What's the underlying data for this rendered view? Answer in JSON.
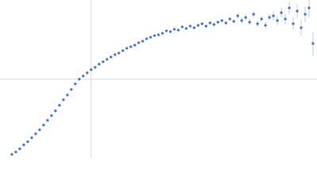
{
  "chart_data": {
    "type": "scatter",
    "xlim": [
      0,
      400
    ],
    "ylim": [
      0,
      200
    ],
    "reference_lines": {
      "x": 115,
      "y": 100,
      "color": "#d3d9e2"
    },
    "series": [
      {
        "color": "#3d6cc0",
        "error_color": "#aebfe0",
        "x": [
          15,
          20,
          25,
          30,
          35,
          40,
          45,
          50,
          55,
          60,
          65,
          70,
          75,
          80,
          85,
          90,
          95,
          100,
          105,
          110,
          115,
          120,
          125,
          130,
          135,
          140,
          145,
          150,
          155,
          160,
          165,
          170,
          175,
          180,
          185,
          190,
          195,
          200,
          205,
          210,
          215,
          220,
          225,
          230,
          235,
          240,
          245,
          250,
          255,
          260,
          265,
          270,
          275,
          280,
          285,
          290,
          295,
          300,
          305,
          310,
          315,
          320,
          325,
          330,
          335,
          340,
          345,
          350,
          355,
          360,
          365,
          370,
          375,
          380,
          385,
          390,
          395
        ],
        "values": [
          5,
          8,
          12,
          17,
          21,
          26,
          31,
          36,
          42,
          48,
          54,
          60,
          67,
          74,
          80,
          87,
          94,
          100,
          104,
          108,
          112,
          115,
          119,
          122,
          125,
          128,
          131,
          133,
          136,
          139,
          141,
          143,
          146,
          148,
          151,
          153,
          155,
          156,
          158,
          161,
          160,
          163,
          162,
          166,
          164,
          167,
          165,
          168,
          170,
          167,
          171,
          169,
          172,
          174,
          171,
          176,
          173,
          180,
          174,
          178,
          172,
          182,
          170,
          176,
          168,
          178,
          180,
          174,
          184,
          176,
          190,
          170,
          186,
          165,
          182,
          190,
          145
        ],
        "errors": [
          0.5,
          0.5,
          0.5,
          0.5,
          0.5,
          0.5,
          0.5,
          0.5,
          0.5,
          0.5,
          0.5,
          0.5,
          0.5,
          0.5,
          0.5,
          0.5,
          0.5,
          0.5,
          0.5,
          0.5,
          0.5,
          0.5,
          0.5,
          0.5,
          0.5,
          0.5,
          0.5,
          0.5,
          0.5,
          0.5,
          0.5,
          0.5,
          0.5,
          0.5,
          0.5,
          0.5,
          0.5,
          1,
          1,
          1,
          1,
          1,
          1,
          1,
          1,
          1,
          1,
          2,
          2,
          2,
          2,
          2,
          2,
          2,
          2,
          2,
          2,
          4,
          4,
          4,
          4,
          4,
          4,
          4,
          4,
          4,
          6,
          6,
          6,
          7,
          8,
          8,
          9,
          10,
          10,
          12,
          15
        ]
      }
    ]
  }
}
